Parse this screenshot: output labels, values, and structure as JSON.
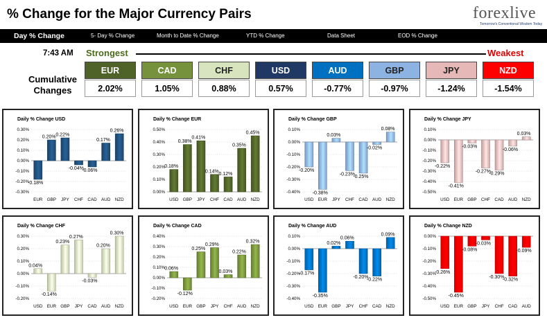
{
  "page": {
    "title": "% Change for the Major Currency Pairs",
    "logo": {
      "brand": "forexlive",
      "tagline": "Tomorrow's Conventional Wisdom Today"
    },
    "tabs": [
      "Day % Change",
      "5- Day % Change",
      "Month to Date % Change",
      "YTD % Change",
      "Data Sheet",
      "EOD % Change"
    ],
    "active_tab": "Day % Change",
    "time": "7:43 AM",
    "strongest_label": "Strongest",
    "weakest_label": "Weakest",
    "cumulative_label": "Cumulative Changes"
  },
  "ranking": [
    {
      "currency": "EUR",
      "change": "2.02%",
      "color": "#4f6228"
    },
    {
      "currency": "CAD",
      "change": "1.05%",
      "color": "#76923c"
    },
    {
      "currency": "CHF",
      "change": "0.88%",
      "color": "#d7e4bd"
    },
    {
      "currency": "USD",
      "change": "0.57%",
      "color": "#1f3864"
    },
    {
      "currency": "AUD",
      "change": "-0.77%",
      "color": "#0070c0"
    },
    {
      "currency": "GBP",
      "change": "-0.97%",
      "color": "#8db3e2"
    },
    {
      "currency": "JPY",
      "change": "-1.24%",
      "color": "#e6b9b8"
    },
    {
      "currency": "NZD",
      "change": "-1.54%",
      "color": "#ff0000"
    }
  ],
  "chart_data": [
    {
      "type": "bar",
      "title": "Daily % Change USD",
      "color": "#1f4e79",
      "categories": [
        "EUR",
        "GBP",
        "JPY",
        "CHF",
        "CAD",
        "AUD",
        "NZD"
      ],
      "values": [
        -0.18,
        0.2,
        0.22,
        -0.04,
        -0.06,
        0.17,
        0.26
      ],
      "ylim": [
        -0.3,
        0.3
      ],
      "ticks": [
        -0.3,
        -0.2,
        -0.1,
        0,
        0.1,
        0.2,
        0.3
      ],
      "ytick_labels": [
        "-0.30%",
        "-0.20%",
        "-0.10%",
        "0.00%",
        "0.10%",
        "0.20%",
        "0.30%"
      ],
      "data_labels": [
        "-0.18%",
        "0.20%",
        "0.22%",
        "-0.04%",
        "-0.06%",
        "0.17%",
        "0.26%"
      ]
    },
    {
      "type": "bar",
      "title": "Daily % Change EUR",
      "color": "#4f6228",
      "categories": [
        "USD",
        "GBP",
        "JPY",
        "CHF",
        "CAD",
        "AUD",
        "NZD"
      ],
      "values": [
        0.18,
        0.38,
        0.41,
        0.14,
        0.12,
        0.35,
        0.45
      ],
      "ylim": [
        0,
        0.5
      ],
      "ticks": [
        0,
        0.1,
        0.2,
        0.3,
        0.4,
        0.5
      ],
      "ytick_labels": [
        "0.00%",
        "0.10%",
        "0.20%",
        "0.30%",
        "0.40%",
        "0.50%"
      ],
      "data_labels": [
        "0.18%",
        "0.38%",
        "0.41%",
        "0.14%",
        "0.12%",
        "0.35%",
        "0.45%"
      ]
    },
    {
      "type": "bar",
      "title": "Daily % Change GBP",
      "color": "#8db3e2",
      "categories": [
        "USD",
        "EUR",
        "JPY",
        "CHF",
        "CAD",
        "AUD",
        "NZD"
      ],
      "values": [
        -0.2,
        -0.38,
        0.03,
        -0.23,
        -0.25,
        -0.02,
        0.08
      ],
      "ylim": [
        -0.4,
        0.1
      ],
      "ticks": [
        -0.4,
        -0.3,
        -0.2,
        -0.1,
        0,
        0.1
      ],
      "ytick_labels": [
        "-0.40%",
        "-0.30%",
        "-0.20%",
        "-0.10%",
        "0.00%",
        "0.10%"
      ],
      "data_labels": [
        "-0.20%",
        "-0.38%",
        "0.03%",
        "-0.23%",
        "-0.25%",
        "-0.02%",
        "0.08%"
      ]
    },
    {
      "type": "bar",
      "title": "Daily % Change JPY",
      "color": "#e6b9b8",
      "categories": [
        "USD",
        "EUR",
        "GBP",
        "CHF",
        "CAD",
        "AUD",
        "NZD"
      ],
      "values": [
        -0.22,
        -0.41,
        -0.03,
        -0.27,
        -0.29,
        -0.06,
        0.03
      ],
      "ylim": [
        -0.5,
        0.1
      ],
      "ticks": [
        -0.5,
        -0.4,
        -0.3,
        -0.2,
        -0.1,
        0,
        0.1
      ],
      "ytick_labels": [
        "-0.50%",
        "-0.40%",
        "-0.30%",
        "-0.20%",
        "-0.10%",
        "0.00%",
        "0.10%"
      ],
      "data_labels": [
        "-0.22%",
        "-0.41%",
        "-0.03%",
        "-0.27%",
        "-0.29%",
        "-0.06%",
        "0.03%"
      ]
    },
    {
      "type": "bar",
      "title": "Daily % Change CHF",
      "color": "#d7e4bd",
      "categories": [
        "USD",
        "EUR",
        "GBP",
        "JPY",
        "CAD",
        "AUD",
        "NZD"
      ],
      "values": [
        0.04,
        -0.14,
        0.23,
        0.27,
        -0.03,
        0.2,
        0.3
      ],
      "ylim": [
        -0.2,
        0.3
      ],
      "ticks": [
        -0.2,
        -0.1,
        0,
        0.1,
        0.2,
        0.3
      ],
      "ytick_labels": [
        "-0.20%",
        "-0.10%",
        "0.00%",
        "0.10%",
        "0.20%",
        "0.30%"
      ],
      "data_labels": [
        "0.04%",
        "-0.14%",
        "0.23%",
        "0.27%",
        "-0.03%",
        "0.20%",
        "0.30%"
      ]
    },
    {
      "type": "bar",
      "title": "Daily % Change CAD",
      "color": "#76923c",
      "categories": [
        "USD",
        "EUR",
        "GBP",
        "JPY",
        "CHF",
        "AUD",
        "NZD"
      ],
      "values": [
        0.06,
        -0.12,
        0.25,
        0.29,
        0.03,
        0.22,
        0.32
      ],
      "ylim": [
        -0.2,
        0.4
      ],
      "ticks": [
        -0.2,
        -0.1,
        0,
        0.1,
        0.2,
        0.3,
        0.4
      ],
      "ytick_labels": [
        "-0.20%",
        "-0.10%",
        "0.00%",
        "0.10%",
        "0.20%",
        "0.30%",
        "0.40%"
      ],
      "data_labels": [
        "0.06%",
        "-0.12%",
        "0.25%",
        "0.29%",
        "0.03%",
        "0.22%",
        "0.32%"
      ]
    },
    {
      "type": "bar",
      "title": "Daily % Change AUD",
      "color": "#0070c0",
      "categories": [
        "USD",
        "EUR",
        "GBP",
        "JPY",
        "CHF",
        "CAD",
        "NZD"
      ],
      "values": [
        -0.17,
        -0.35,
        0.02,
        0.06,
        -0.2,
        -0.22,
        0.09
      ],
      "ylim": [
        -0.4,
        0.1
      ],
      "ticks": [
        -0.4,
        -0.3,
        -0.2,
        -0.1,
        0,
        0.1
      ],
      "ytick_labels": [
        "-0.40%",
        "-0.30%",
        "-0.20%",
        "-0.10%",
        "0.00%",
        "0.10%"
      ],
      "data_labels": [
        "-0.17%",
        "-0.35%",
        "0.02%",
        "0.06%",
        "-0.20%",
        "-0.22%",
        "0.09%"
      ]
    },
    {
      "type": "bar",
      "title": "Daily % Change NZD",
      "color": "#ff0000",
      "categories": [
        "USD",
        "EUR",
        "GBP",
        "JPY",
        "CHF",
        "CAD",
        "AUD"
      ],
      "values": [
        -0.26,
        -0.45,
        -0.08,
        -0.03,
        -0.3,
        -0.32,
        -0.09
      ],
      "ylim": [
        -0.5,
        0
      ],
      "ticks": [
        -0.5,
        -0.4,
        -0.3,
        -0.2,
        -0.1,
        0
      ],
      "ytick_labels": [
        "-0.50%",
        "-0.40%",
        "-0.30%",
        "-0.20%",
        "-0.10%",
        "0.00%"
      ],
      "data_labels": [
        "-0.26%",
        "-0.45%",
        "-0.08%",
        "-0.03%",
        "-0.30%",
        "-0.32%",
        "-0.09%"
      ]
    }
  ]
}
